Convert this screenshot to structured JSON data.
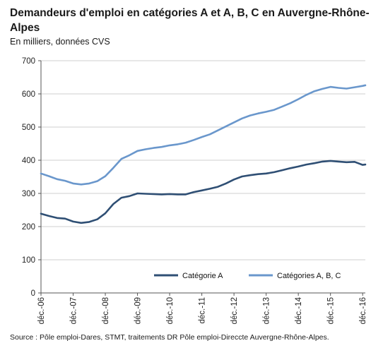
{
  "chart_data": {
    "type": "line",
    "title": "Demandeurs d'emploi en catégories A et A, B, C en Auvergne-Rhône-Alpes",
    "subtitle": "En milliers, données CVS",
    "xlabel": "",
    "ylabel": "",
    "ylim": [
      0,
      700
    ],
    "yticks": [
      0,
      100,
      200,
      300,
      400,
      500,
      600,
      700
    ],
    "xlim": [
      "déc.-06",
      "déc.-16"
    ],
    "xtick_labels": [
      "déc.-06",
      "déc.-07",
      "déc.-08",
      "déc.-09",
      "déc.-10",
      "déc.-11",
      "déc.-12",
      "déc.-13",
      "déc.-14",
      "déc.-15",
      "déc.-16"
    ],
    "grid": "horizontal",
    "legend_position": "bottom-inside",
    "x_unit": "months since déc.-06",
    "series": [
      {
        "name": "Catégorie A",
        "color": "#2f4f74",
        "x": [
          0,
          3,
          6,
          9,
          12,
          15,
          18,
          21,
          24,
          27,
          30,
          33,
          36,
          39,
          42,
          45,
          48,
          51,
          54,
          57,
          60,
          63,
          66,
          69,
          72,
          75,
          78,
          81,
          84,
          87,
          90,
          93,
          96,
          99,
          102,
          105,
          108,
          111,
          114,
          117,
          120,
          121
        ],
        "values": [
          239,
          232,
          226,
          224,
          215,
          211,
          214,
          222,
          240,
          268,
          287,
          292,
          300,
          299,
          298,
          297,
          298,
          297,
          297,
          304,
          309,
          314,
          320,
          330,
          342,
          351,
          355,
          358,
          360,
          364,
          370,
          376,
          381,
          387,
          391,
          396,
          398,
          396,
          394,
          395,
          386,
          387
        ]
      },
      {
        "name": "Catégories A, B, C",
        "color": "#6a97cc",
        "x": [
          0,
          3,
          6,
          9,
          12,
          15,
          18,
          21,
          24,
          27,
          30,
          33,
          36,
          39,
          42,
          45,
          48,
          51,
          54,
          57,
          60,
          63,
          66,
          69,
          72,
          75,
          78,
          81,
          84,
          87,
          90,
          93,
          96,
          99,
          102,
          105,
          108,
          111,
          114,
          117,
          120,
          121
        ],
        "values": [
          360,
          352,
          343,
          338,
          330,
          327,
          330,
          337,
          352,
          377,
          404,
          415,
          428,
          433,
          437,
          440,
          445,
          448,
          453,
          461,
          470,
          478,
          490,
          502,
          514,
          526,
          535,
          541,
          546,
          552,
          562,
          572,
          584,
          597,
          608,
          615,
          621,
          618,
          616,
          620,
          624,
          626
        ]
      }
    ]
  },
  "source": "Source : Pôle emploi-Dares, STMT, traitements DR Pôle emploi-Direccte Auvergne-Rhône-Alpes."
}
